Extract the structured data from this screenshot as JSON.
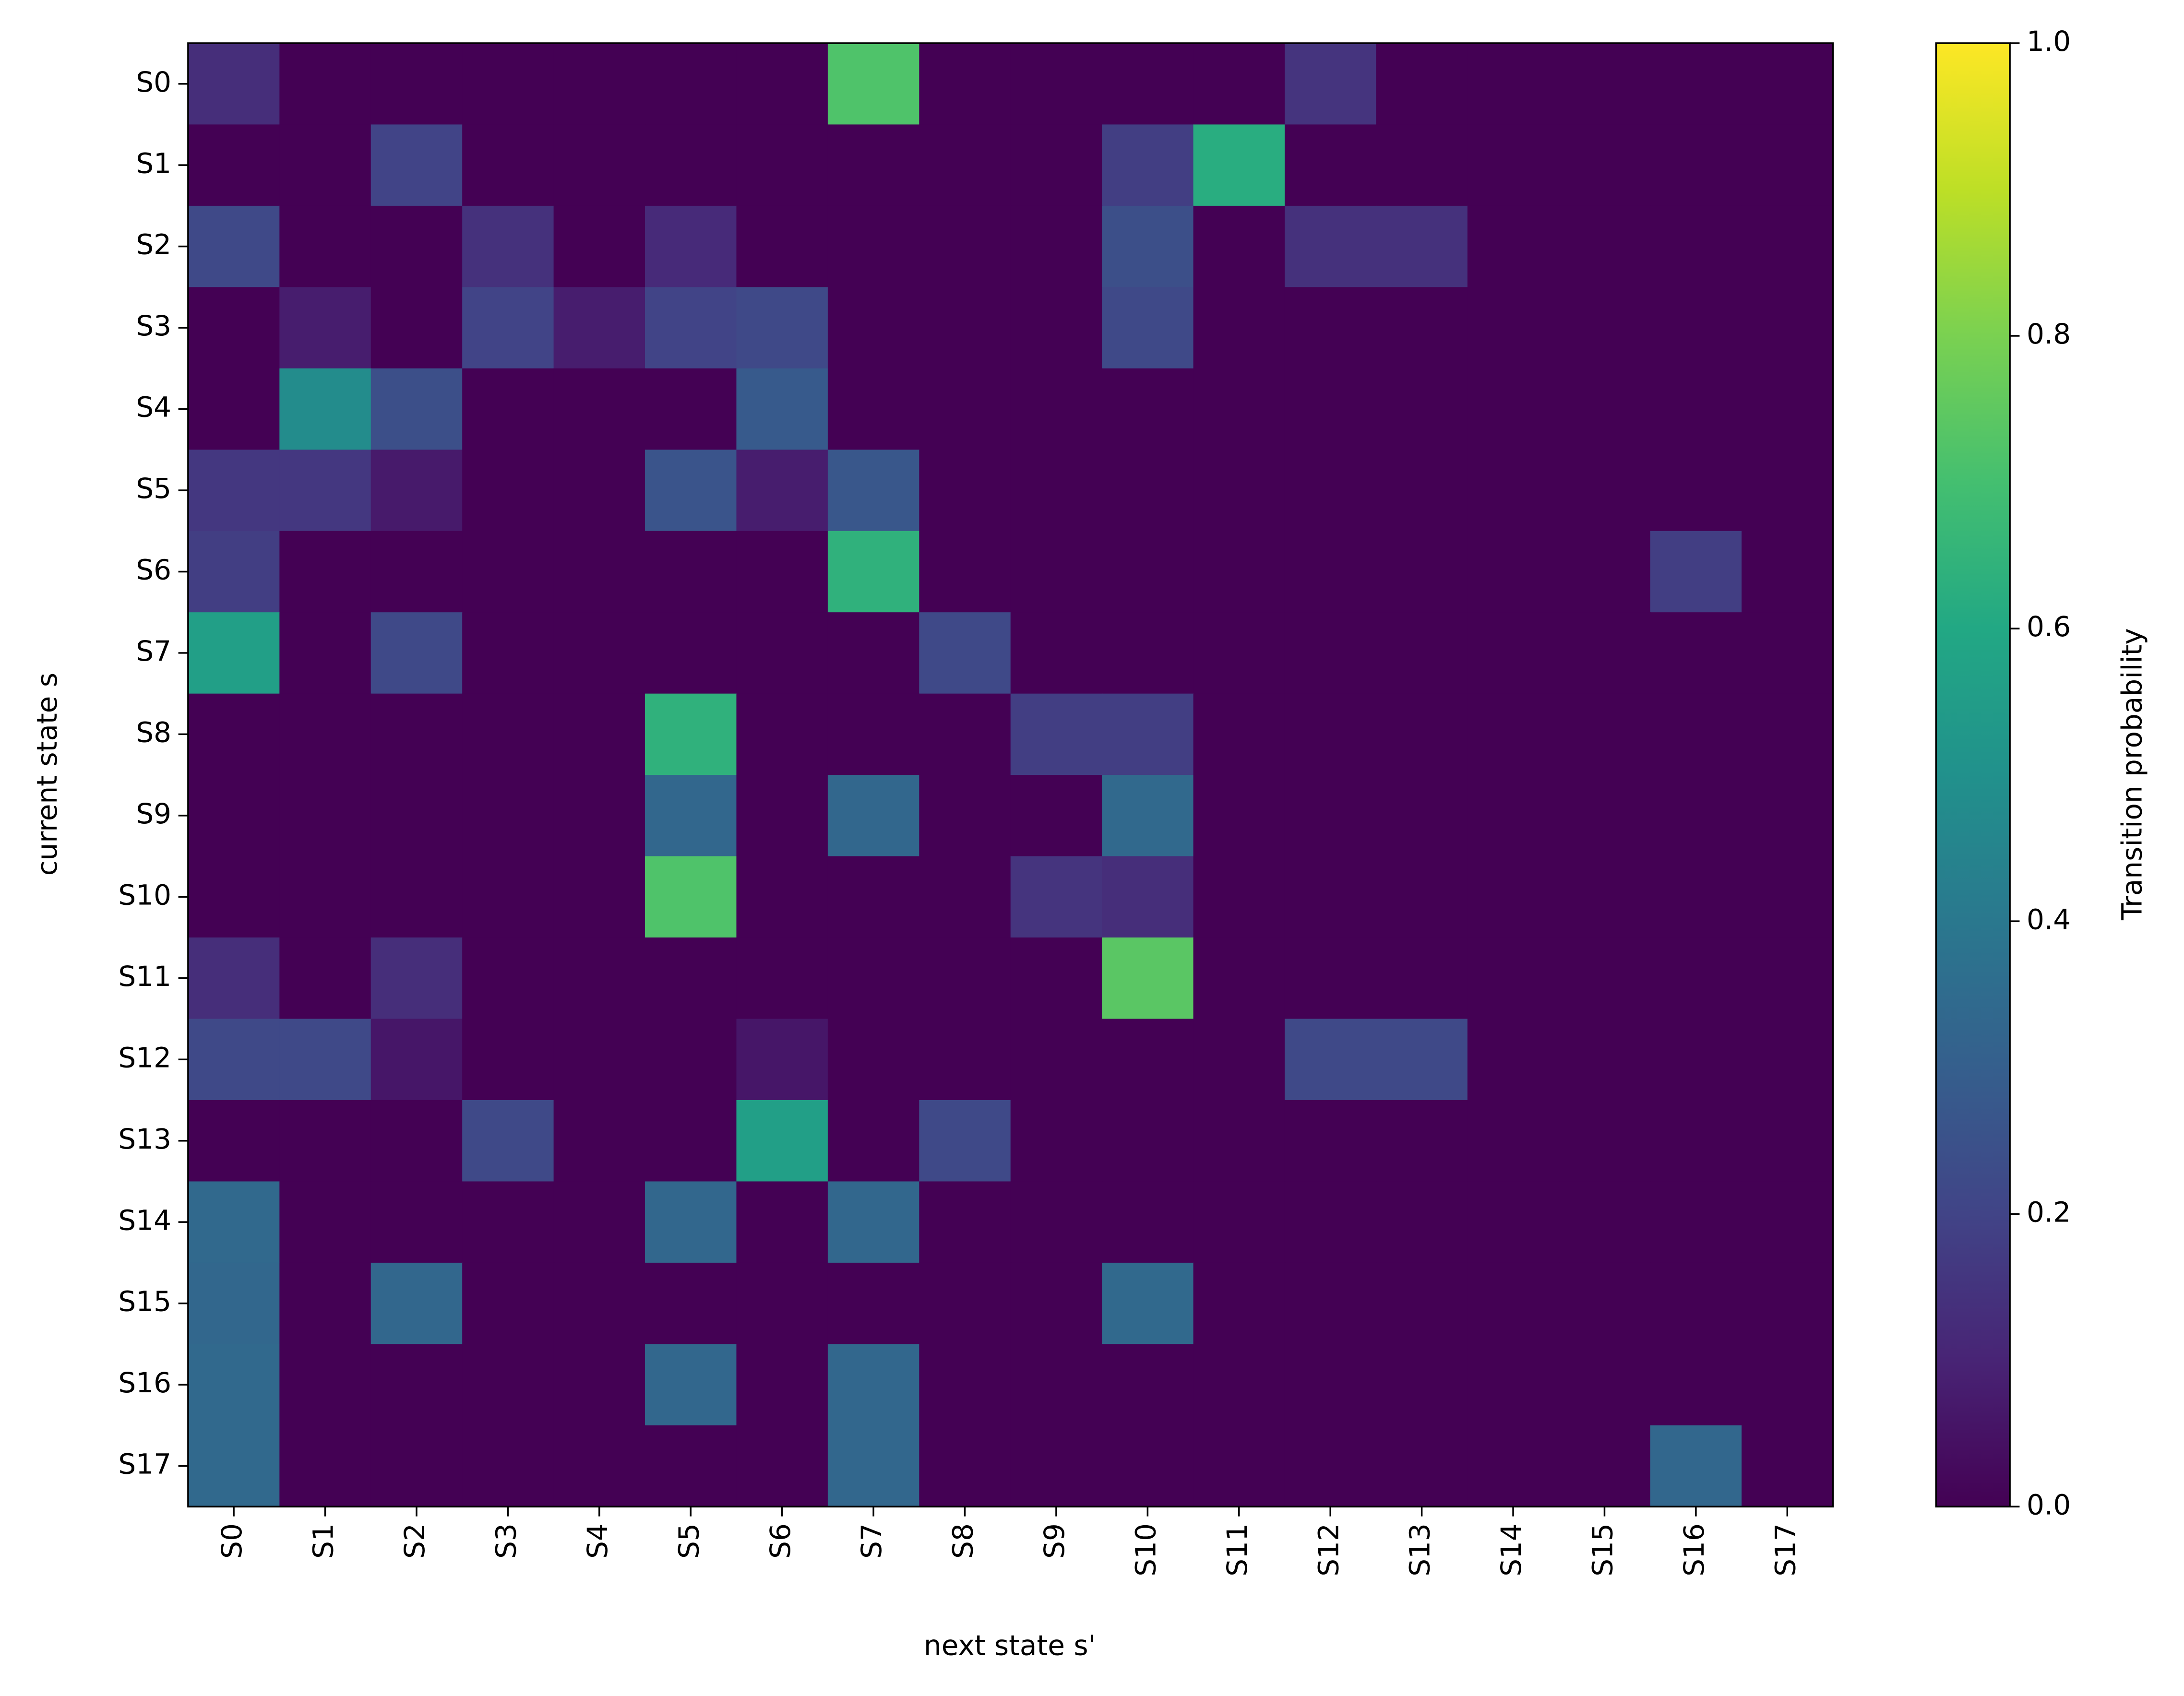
{
  "chart_data": {
    "type": "heatmap",
    "x_label": "next state s'",
    "y_label": "current state s",
    "colorbar_label": "Transition probability",
    "colormap": "viridis",
    "x_categories": [
      "S0",
      "S1",
      "S2",
      "S3",
      "S4",
      "S5",
      "S6",
      "S7",
      "S8",
      "S9",
      "S10",
      "S11",
      "S12",
      "S13",
      "S14",
      "S15",
      "S16",
      "S17"
    ],
    "y_categories": [
      "S0",
      "S1",
      "S2",
      "S3",
      "S4",
      "S5",
      "S6",
      "S7",
      "S8",
      "S9",
      "S10",
      "S11",
      "S12",
      "S13",
      "S14",
      "S15",
      "S16",
      "S17"
    ],
    "z": [
      [
        0.13,
        0,
        0,
        0,
        0,
        0,
        0,
        0.72,
        0,
        0,
        0,
        0,
        0.15,
        0,
        0,
        0,
        0,
        0
      ],
      [
        0,
        0,
        0.2,
        0,
        0,
        0,
        0,
        0,
        0,
        0,
        0.18,
        0.62,
        0,
        0,
        0,
        0,
        0,
        0
      ],
      [
        0.22,
        0,
        0,
        0.14,
        0,
        0.12,
        0,
        0,
        0,
        0,
        0.24,
        0,
        0.14,
        0.14,
        0,
        0,
        0,
        0
      ],
      [
        0,
        0.08,
        0,
        0.2,
        0.08,
        0.2,
        0.22,
        0,
        0,
        0,
        0.22,
        0,
        0,
        0,
        0,
        0,
        0,
        0
      ],
      [
        0,
        0.48,
        0.24,
        0,
        0,
        0,
        0.28,
        0,
        0,
        0,
        0,
        0,
        0,
        0,
        0,
        0,
        0,
        0
      ],
      [
        0.16,
        0.16,
        0.07,
        0,
        0,
        0.26,
        0.08,
        0.27,
        0,
        0,
        0,
        0,
        0,
        0,
        0,
        0,
        0,
        0
      ],
      [
        0.18,
        0,
        0,
        0,
        0,
        0,
        0,
        0.64,
        0,
        0,
        0,
        0,
        0,
        0,
        0,
        0,
        0.18,
        0
      ],
      [
        0.56,
        0,
        0.22,
        0,
        0,
        0,
        0,
        0,
        0.22,
        0,
        0,
        0,
        0,
        0,
        0,
        0,
        0,
        0
      ],
      [
        0,
        0,
        0,
        0,
        0,
        0.64,
        0,
        0,
        0,
        0.18,
        0.18,
        0,
        0,
        0,
        0,
        0,
        0,
        0
      ],
      [
        0,
        0,
        0,
        0,
        0,
        0.33,
        0,
        0.33,
        0,
        0,
        0.34,
        0,
        0,
        0,
        0,
        0,
        0,
        0
      ],
      [
        0,
        0,
        0,
        0,
        0,
        0.72,
        0,
        0,
        0,
        0.15,
        0.13,
        0,
        0,
        0,
        0,
        0,
        0,
        0
      ],
      [
        0.13,
        0,
        0.13,
        0,
        0,
        0,
        0,
        0,
        0,
        0,
        0.74,
        0,
        0,
        0,
        0,
        0,
        0,
        0
      ],
      [
        0.22,
        0.22,
        0.06,
        0,
        0,
        0,
        0.06,
        0,
        0,
        0,
        0,
        0,
        0.22,
        0.22,
        0,
        0,
        0,
        0
      ],
      [
        0,
        0,
        0,
        0.22,
        0,
        0,
        0.56,
        0,
        0.22,
        0,
        0,
        0,
        0,
        0,
        0,
        0,
        0,
        0
      ],
      [
        0.34,
        0,
        0,
        0,
        0,
        0.33,
        0,
        0.33,
        0,
        0,
        0,
        0,
        0,
        0,
        0,
        0,
        0,
        0
      ],
      [
        0.33,
        0,
        0.33,
        0,
        0,
        0,
        0,
        0,
        0,
        0,
        0.34,
        0,
        0,
        0,
        0,
        0,
        0,
        0
      ],
      [
        0.34,
        0,
        0,
        0,
        0,
        0.33,
        0,
        0.33,
        0,
        0,
        0,
        0,
        0,
        0,
        0,
        0,
        0,
        0
      ],
      [
        0.34,
        0,
        0,
        0,
        0,
        0,
        0,
        0.33,
        0,
        0,
        0,
        0,
        0,
        0,
        0,
        0,
        0.33,
        0
      ]
    ],
    "zlim": [
      0,
      1
    ],
    "zticks": [
      {
        "value": 0,
        "label": "0.0"
      },
      0.2,
      0.4,
      0.6,
      0.8,
      {
        "value": 1,
        "label": "1.0"
      }
    ]
  }
}
